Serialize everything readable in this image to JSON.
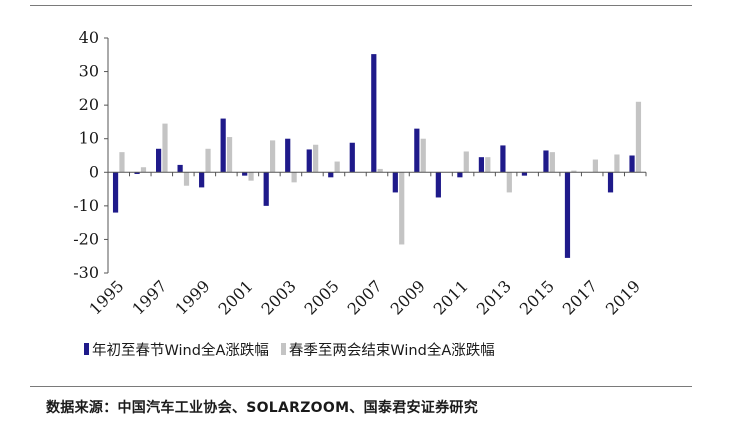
{
  "chart_data": {
    "type": "bar",
    "categories": [
      "1995",
      "1996",
      "1997",
      "1998",
      "1999",
      "2000",
      "2001",
      "2002",
      "2003",
      "2004",
      "2005",
      "2006",
      "2007",
      "2008",
      "2009",
      "2010",
      "2011",
      "2012",
      "2013",
      "2014",
      "2015",
      "2016",
      "2017",
      "2018",
      "2019"
    ],
    "tick_labels": [
      "1995",
      "1997",
      "1999",
      "2001",
      "2003",
      "2005",
      "2007",
      "2009",
      "2011",
      "2013",
      "2015",
      "2017",
      "2019"
    ],
    "series": [
      {
        "name": "年初至春节Wind全A涨跌幅",
        "color": "#1f1a8a",
        "values": [
          -12,
          -0.5,
          7,
          2.2,
          -4.5,
          16,
          -1,
          -10,
          10,
          6.8,
          -1.5,
          8.8,
          35.2,
          -6,
          13,
          -7.5,
          -1.5,
          4.5,
          8,
          -1,
          6.5,
          -25.5,
          0,
          -6,
          5
        ]
      },
      {
        "name": "春季至两会结束Wind全A涨跌幅",
        "color": "#c4c4c4",
        "values": [
          6,
          1.5,
          14.5,
          -4,
          7,
          10.5,
          -2.5,
          9.5,
          -3,
          8.2,
          3.2,
          0,
          1,
          -21.5,
          10,
          0,
          6.2,
          4.5,
          -6,
          0,
          6,
          0.5,
          3.8,
          5.3,
          21
        ]
      }
    ],
    "ylim": [
      -30,
      40
    ],
    "yticks": [
      -30,
      -20,
      -10,
      0,
      10,
      20,
      30,
      40
    ],
    "xlabel": "",
    "ylabel": ""
  },
  "legend": {
    "item1": "年初至春节Wind全A涨跌幅",
    "item2": "春季至两会结束Wind全A涨跌幅"
  },
  "source": "数据来源：中国汽车工业协会、SOLARZOOM、国泰君安证券研究"
}
